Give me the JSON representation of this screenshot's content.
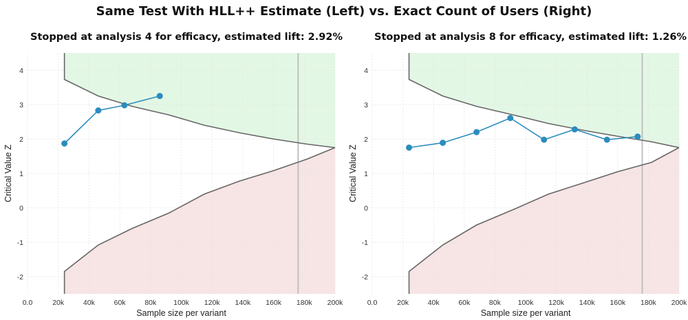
{
  "title": "Same Test With HLL++ Estimate (Left) vs. Exact Count of Users (Right)",
  "chart_data": [
    {
      "type": "line",
      "title": "Stopped at analysis 4 for efficacy, estimated lift: 2.92%",
      "xlabel": "Sample size per variant",
      "ylabel": "Critical Value Z",
      "xlim": [
        0,
        200000
      ],
      "ylim": [
        -2.5,
        4.5
      ],
      "x_ticks": [
        "0.0",
        "20k",
        "40k",
        "60k",
        "80k",
        "100k",
        "120k",
        "140k",
        "160k",
        "180k",
        "200k"
      ],
      "y_ticks": [
        "4",
        "3",
        "2",
        "1",
        "0",
        "-1",
        "-2"
      ],
      "grid": true,
      "vertical_reference_x": 176000,
      "efficacy_boundary": {
        "x": [
          24000,
          24000,
          46000,
          68000,
          92000,
          115000,
          138000,
          160000,
          182000,
          200000
        ],
        "y": [
          4.6,
          3.73,
          3.25,
          2.95,
          2.7,
          2.4,
          2.18,
          2.0,
          1.85,
          1.75
        ]
      },
      "futility_boundary": {
        "x": [
          24000,
          24000,
          46000,
          68000,
          92000,
          115000,
          138000,
          160000,
          182000,
          200000
        ],
        "y": [
          -2.5,
          -1.85,
          -1.08,
          -0.6,
          -0.15,
          0.4,
          0.78,
          1.08,
          1.42,
          1.75
        ]
      },
      "series": [
        {
          "x": [
            24000,
            46000,
            63000,
            86000
          ],
          "y": [
            1.87,
            2.83,
            2.98,
            3.25
          ]
        }
      ],
      "colors": {
        "efficacy_region": "#e3f7e5",
        "futility_region": "#f7e4e4",
        "series": "#2b8cbe",
        "boundary": "#666666",
        "reference_line": "#c0c0c0"
      }
    },
    {
      "type": "line",
      "title": "Stopped at analysis 8 for efficacy, estimated lift: 1.26%",
      "xlabel": "Sample size per variant",
      "ylabel": "Critical Value Z",
      "xlim": [
        0,
        200000
      ],
      "ylim": [
        -2.5,
        4.5
      ],
      "x_ticks": [
        "0.0",
        "20k",
        "40k",
        "60k",
        "80k",
        "100k",
        "120k",
        "140k",
        "160k",
        "180k",
        "200k"
      ],
      "y_ticks": [
        "4",
        "3",
        "2",
        "1",
        "0",
        "-1",
        "-2"
      ],
      "grid": true,
      "vertical_reference_x": 176000,
      "efficacy_boundary": {
        "x": [
          24000,
          24000,
          46000,
          68000,
          92000,
          115000,
          138000,
          160000,
          182000,
          200000
        ],
        "y": [
          4.6,
          3.73,
          3.25,
          2.95,
          2.7,
          2.45,
          2.25,
          2.08,
          1.92,
          1.75
        ]
      },
      "futility_boundary": {
        "x": [
          24000,
          24000,
          46000,
          68000,
          92000,
          115000,
          138000,
          160000,
          182000,
          200000
        ],
        "y": [
          -2.5,
          -1.85,
          -1.08,
          -0.5,
          -0.05,
          0.4,
          0.73,
          1.05,
          1.32,
          1.75
        ]
      },
      "series": [
        {
          "x": [
            24000,
            46000,
            68000,
            90000,
            112000,
            132000,
            153000,
            173000
          ],
          "y": [
            1.75,
            1.89,
            2.2,
            2.61,
            1.98,
            2.28,
            1.98,
            2.07
          ]
        }
      ],
      "colors": {
        "efficacy_region": "#e3f7e5",
        "futility_region": "#f7e4e4",
        "series": "#2b8cbe",
        "boundary": "#666666",
        "reference_line": "#c0c0c0"
      }
    }
  ]
}
